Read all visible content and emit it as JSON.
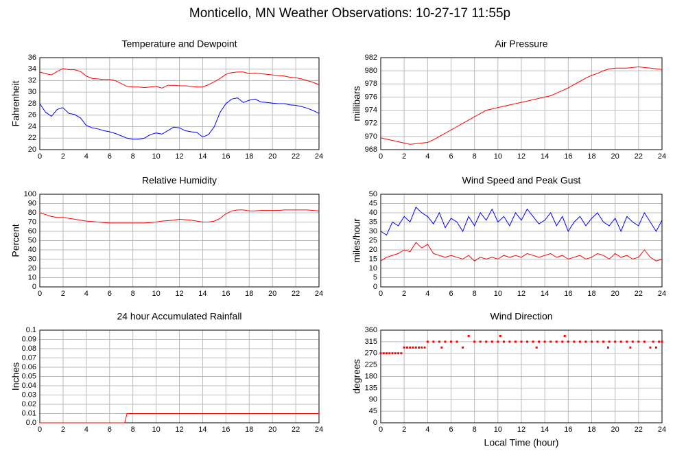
{
  "title": "Monticello, MN Weather Observations: 10-27-17 11:55p",
  "chart_data": [
    {
      "type": "line",
      "title": "Temperature and Dewpoint",
      "ylabel": "Fahrenheit",
      "x": [
        0,
        0.5,
        1,
        1.5,
        2,
        2.5,
        3,
        3.5,
        4,
        4.5,
        5,
        5.5,
        6,
        6.5,
        7,
        7.5,
        8,
        8.5,
        9,
        9.5,
        10,
        10.5,
        11,
        11.5,
        12,
        12.5,
        13,
        13.5,
        14,
        14.5,
        15,
        15.5,
        16,
        16.5,
        17,
        17.5,
        18,
        18.5,
        19,
        19.5,
        20,
        20.5,
        21,
        21.5,
        22,
        22.5,
        23,
        23.5,
        24
      ],
      "series": [
        {
          "color": "#ff0000",
          "values": [
            33.5,
            33.2,
            33.0,
            33.6,
            34.1,
            33.9,
            33.9,
            33.6,
            32.8,
            32.4,
            32.3,
            32.2,
            32.2,
            32.0,
            31.5,
            31.0,
            30.9,
            30.9,
            30.8,
            30.9,
            31.0,
            30.7,
            31.2,
            31.2,
            31.1,
            31.1,
            31.0,
            30.9,
            30.9,
            31.3,
            31.8,
            32.4,
            33.1,
            33.4,
            33.5,
            33.5,
            33.2,
            33.3,
            33.2,
            33.1,
            33.0,
            32.9,
            32.8,
            32.6,
            32.5,
            32.3,
            32.0,
            31.7,
            31.3
          ]
        },
        {
          "color": "#0000ff",
          "values": [
            28.0,
            26.5,
            25.8,
            27.0,
            27.3,
            26.3,
            26.1,
            25.5,
            24.2,
            23.8,
            23.6,
            23.3,
            23.1,
            22.8,
            22.4,
            22.0,
            21.8,
            21.8,
            22.0,
            22.6,
            22.9,
            22.7,
            23.3,
            23.9,
            23.8,
            23.3,
            23.1,
            23.0,
            22.2,
            22.6,
            24.0,
            26.5,
            28.0,
            28.8,
            29.0,
            28.2,
            28.6,
            28.8,
            28.3,
            28.2,
            28.1,
            28.0,
            28.0,
            27.8,
            27.7,
            27.5,
            27.2,
            26.8,
            26.3
          ]
        }
      ],
      "xlim": [
        0,
        24
      ],
      "xticks": [
        0,
        2,
        4,
        6,
        8,
        10,
        12,
        14,
        16,
        18,
        20,
        22,
        24
      ],
      "ylim": [
        20,
        36
      ],
      "yticks": [
        20,
        22,
        24,
        26,
        28,
        30,
        32,
        34,
        36
      ],
      "grid": true
    },
    {
      "type": "line",
      "title": "Air Pressure",
      "ylabel": "millibars",
      "x": [
        0,
        0.5,
        1,
        1.5,
        2,
        2.5,
        3,
        3.5,
        4,
        4.5,
        5,
        5.5,
        6,
        6.5,
        7,
        7.5,
        8,
        8.5,
        9,
        9.5,
        10,
        10.5,
        11,
        11.5,
        12,
        12.5,
        13,
        13.5,
        14,
        14.5,
        15,
        15.5,
        16,
        16.5,
        17,
        17.5,
        18,
        18.5,
        19,
        19.5,
        20,
        20.5,
        21,
        21.5,
        22,
        22.5,
        23,
        23.5,
        24
      ],
      "series": [
        {
          "color": "#ff0000",
          "values": [
            969.8,
            969.6,
            969.4,
            969.2,
            969.0,
            968.8,
            968.9,
            969.0,
            969.1,
            969.5,
            970.0,
            970.5,
            971.0,
            971.5,
            972.0,
            972.5,
            973.0,
            973.5,
            974.0,
            974.2,
            974.4,
            974.6,
            974.8,
            975.0,
            975.2,
            975.4,
            975.6,
            975.8,
            976.0,
            976.2,
            976.6,
            977.0,
            977.4,
            977.9,
            978.4,
            978.9,
            979.3,
            979.6,
            980.0,
            980.3,
            980.4,
            980.4,
            980.4,
            980.5,
            980.6,
            980.5,
            980.4,
            980.3,
            980.2
          ]
        }
      ],
      "xlim": [
        0,
        24
      ],
      "xticks": [
        0,
        2,
        4,
        6,
        8,
        10,
        12,
        14,
        16,
        18,
        20,
        22,
        24
      ],
      "ylim": [
        968,
        982
      ],
      "yticks": [
        968,
        970,
        972,
        974,
        976,
        978,
        980,
        982
      ],
      "grid": true
    },
    {
      "type": "line",
      "title": "Relative Humidity",
      "ylabel": "Percent",
      "x": [
        0,
        0.5,
        1,
        1.5,
        2,
        2.5,
        3,
        3.5,
        4,
        4.5,
        5,
        5.5,
        6,
        6.5,
        7,
        7.5,
        8,
        8.5,
        9,
        9.5,
        10,
        10.5,
        11,
        11.5,
        12,
        12.5,
        13,
        13.5,
        14,
        14.5,
        15,
        15.5,
        16,
        16.5,
        17,
        17.5,
        18,
        18.5,
        19,
        19.5,
        20,
        20.5,
        21,
        21.5,
        22,
        22.5,
        23,
        23.5,
        24
      ],
      "series": [
        {
          "color": "#ff0000",
          "values": [
            80,
            78,
            76,
            75,
            75,
            74,
            73,
            72,
            71,
            70.5,
            70,
            69.5,
            69,
            69,
            69,
            69,
            69,
            69,
            69,
            69.5,
            70,
            71,
            71.5,
            72,
            73,
            72.5,
            72,
            71,
            70,
            70,
            71,
            74,
            79,
            82,
            83,
            83,
            82,
            82,
            82.5,
            82.5,
            82.5,
            82.5,
            83,
            83,
            83,
            83,
            83,
            82.5,
            82
          ]
        }
      ],
      "xlim": [
        0,
        24
      ],
      "xticks": [
        0,
        2,
        4,
        6,
        8,
        10,
        12,
        14,
        16,
        18,
        20,
        22,
        24
      ],
      "ylim": [
        0,
        100
      ],
      "yticks": [
        0,
        10,
        20,
        30,
        40,
        50,
        60,
        70,
        80,
        90,
        100
      ],
      "grid": true
    },
    {
      "type": "line",
      "title": "Wind Speed and Peak Gust",
      "ylabel": "miles/hour",
      "x": [
        0,
        0.5,
        1,
        1.5,
        2,
        2.5,
        3,
        3.5,
        4,
        4.5,
        5,
        5.5,
        6,
        6.5,
        7,
        7.5,
        8,
        8.5,
        9,
        9.5,
        10,
        10.5,
        11,
        11.5,
        12,
        12.5,
        13,
        13.5,
        14,
        14.5,
        15,
        15.5,
        16,
        16.5,
        17,
        17.5,
        18,
        18.5,
        19,
        19.5,
        20,
        20.5,
        21,
        21.5,
        22,
        22.5,
        23,
        23.5,
        24
      ],
      "series": [
        {
          "color": "#0000ff",
          "values": [
            30,
            28,
            35,
            33,
            38,
            35,
            43,
            40,
            38,
            34,
            40,
            32,
            37,
            35,
            30,
            38,
            33,
            40,
            36,
            42,
            35,
            38,
            33,
            40,
            36,
            42,
            38,
            34,
            36,
            40,
            33,
            38,
            30,
            35,
            38,
            33,
            37,
            40,
            35,
            33,
            37,
            30,
            38,
            35,
            33,
            40,
            35,
            30,
            36
          ]
        },
        {
          "color": "#ff0000",
          "values": [
            14,
            16,
            17,
            18,
            20,
            19,
            24,
            21,
            23,
            18,
            17,
            16,
            17,
            16,
            15,
            17,
            14,
            16,
            15,
            16,
            15,
            17,
            16,
            17,
            16,
            18,
            17,
            16,
            17,
            18,
            16,
            17,
            15,
            16,
            17,
            15,
            16,
            18,
            17,
            15,
            18,
            16,
            17,
            15,
            16,
            20,
            16,
            14,
            15
          ]
        }
      ],
      "xlim": [
        0,
        24
      ],
      "xticks": [
        0,
        2,
        4,
        6,
        8,
        10,
        12,
        14,
        16,
        18,
        20,
        22,
        24
      ],
      "ylim": [
        0,
        50
      ],
      "yticks": [
        0,
        5,
        10,
        15,
        20,
        25,
        30,
        35,
        40,
        45,
        50
      ],
      "grid": true
    },
    {
      "type": "line",
      "title": "24 hour Accumulated Rainfall",
      "ylabel": "Inches",
      "x": [
        0,
        7.3,
        7.5,
        24
      ],
      "series": [
        {
          "color": "#ff0000",
          "values": [
            0,
            0,
            0.01,
            0.01
          ]
        }
      ],
      "xlim": [
        0,
        24
      ],
      "xticks": [
        0,
        2,
        4,
        6,
        8,
        10,
        12,
        14,
        16,
        18,
        20,
        22,
        24
      ],
      "ylim": [
        0,
        0.1
      ],
      "yticks": [
        {
          "value": 0,
          "label": "0.0"
        },
        0.01,
        0.02,
        0.03,
        0.04,
        0.05,
        0.06,
        0.07,
        0.08,
        0.09,
        0.1
      ],
      "grid": true
    },
    {
      "type": "scatter",
      "title": "Wind Direction",
      "ylabel": "degrees",
      "xlabel": "Local Time (hour)",
      "x": [
        0,
        0.25,
        0.5,
        0.75,
        1,
        1.25,
        1.5,
        1.75,
        2,
        2.25,
        2.5,
        2.75,
        3,
        3.25,
        3.5,
        3.75,
        4,
        4.5,
        5,
        5.2,
        5.5,
        6,
        6.5,
        7,
        7.5,
        8,
        8.5,
        9,
        9.5,
        10,
        10.2,
        10.5,
        11,
        11.5,
        12,
        12.5,
        13,
        13.3,
        13.5,
        14,
        14.5,
        15,
        15.5,
        15.7,
        16,
        16.5,
        17,
        17.5,
        18,
        18.5,
        19,
        19.4,
        19.5,
        20,
        20.5,
        21,
        21.3,
        21.5,
        22,
        22.5,
        23,
        23.25,
        23.5,
        23.75,
        24
      ],
      "series": [
        {
          "color": "#ff0000",
          "values": [
            270,
            270,
            270,
            270,
            270,
            270,
            270,
            270,
            292.5,
            292.5,
            292.5,
            292.5,
            292.5,
            292.5,
            292.5,
            292.5,
            315,
            315,
            315,
            292.5,
            315,
            315,
            315,
            292.5,
            337.5,
            315,
            315,
            315,
            315,
            315,
            337.5,
            315,
            315,
            315,
            315,
            315,
            315,
            292.5,
            315,
            315,
            315,
            315,
            315,
            337.5,
            315,
            315,
            315,
            315,
            315,
            315,
            315,
            292.5,
            315,
            315,
            315,
            315,
            292.5,
            315,
            315,
            315,
            292.5,
            315,
            292.5,
            315,
            315
          ]
        }
      ],
      "xlim": [
        0,
        24
      ],
      "xticks": [
        0,
        2,
        4,
        6,
        8,
        10,
        12,
        14,
        16,
        18,
        20,
        22,
        24
      ],
      "ylim": [
        0,
        360
      ],
      "yticks": [
        0,
        45,
        90,
        135,
        180,
        225,
        270,
        315,
        360
      ],
      "grid": true
    }
  ]
}
